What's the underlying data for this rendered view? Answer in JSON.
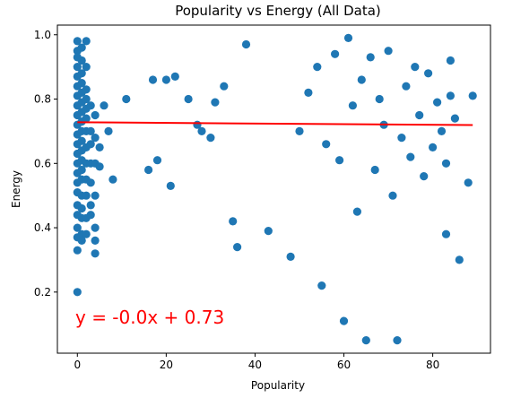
{
  "chart_data": {
    "type": "scatter",
    "title": "Popularity vs Energy (All Data)",
    "xlabel": "Popularity",
    "ylabel": "Energy",
    "xlim": [
      -4.5,
      93
    ],
    "ylim": [
      0.01,
      1.03
    ],
    "x_ticks": [
      0,
      20,
      40,
      60,
      80
    ],
    "y_ticks": [
      0.2,
      0.4,
      0.6,
      0.8,
      1.0
    ],
    "x_tick_labels": [
      "0",
      "20",
      "40",
      "60",
      "80"
    ],
    "y_tick_labels": [
      "0.2",
      "0.4",
      "0.6",
      "0.8",
      "1.0"
    ],
    "grid": false,
    "point_color": "#1f77b4",
    "regression": {
      "equation": "y = -0.0x + 0.73",
      "slope": -0.0001,
      "intercept": 0.728,
      "x_range": [
        0,
        89
      ],
      "color": "#ff0000"
    },
    "series": [
      {
        "points": [
          [
            0,
            0.98
          ],
          [
            0,
            0.95
          ],
          [
            0,
            0.93
          ],
          [
            0,
            0.9
          ],
          [
            0,
            0.87
          ],
          [
            0,
            0.84
          ],
          [
            0,
            0.81
          ],
          [
            0,
            0.78
          ],
          [
            0,
            0.75
          ],
          [
            0,
            0.72
          ],
          [
            0,
            0.69
          ],
          [
            0,
            0.66
          ],
          [
            0,
            0.63
          ],
          [
            0,
            0.6
          ],
          [
            0,
            0.57
          ],
          [
            0,
            0.54
          ],
          [
            0,
            0.51
          ],
          [
            0,
            0.47
          ],
          [
            0,
            0.44
          ],
          [
            0,
            0.4
          ],
          [
            0,
            0.37
          ],
          [
            0,
            0.33
          ],
          [
            0,
            0.2
          ],
          [
            1,
            0.96
          ],
          [
            1,
            0.92
          ],
          [
            1,
            0.88
          ],
          [
            1,
            0.85
          ],
          [
            1,
            0.82
          ],
          [
            1,
            0.79
          ],
          [
            1,
            0.76
          ],
          [
            1,
            0.73
          ],
          [
            1,
            0.7
          ],
          [
            1,
            0.67
          ],
          [
            1,
            0.64
          ],
          [
            1,
            0.61
          ],
          [
            1,
            0.58
          ],
          [
            1,
            0.55
          ],
          [
            1,
            0.5
          ],
          [
            1,
            0.46
          ],
          [
            1,
            0.43
          ],
          [
            1,
            0.38
          ],
          [
            1,
            0.36
          ],
          [
            2,
            0.98
          ],
          [
            2,
            0.9
          ],
          [
            2,
            0.83
          ],
          [
            2,
            0.8
          ],
          [
            2,
            0.77
          ],
          [
            2,
            0.74
          ],
          [
            2,
            0.7
          ],
          [
            2,
            0.65
          ],
          [
            2,
            0.6
          ],
          [
            2,
            0.55
          ],
          [
            2,
            0.5
          ],
          [
            2,
            0.43
          ],
          [
            2,
            0.38
          ],
          [
            3,
            0.78
          ],
          [
            3,
            0.7
          ],
          [
            3,
            0.66
          ],
          [
            3,
            0.6
          ],
          [
            3,
            0.54
          ],
          [
            3,
            0.47
          ],
          [
            3,
            0.44
          ],
          [
            4,
            0.75
          ],
          [
            4,
            0.68
          ],
          [
            4,
            0.6
          ],
          [
            4,
            0.5
          ],
          [
            4,
            0.4
          ],
          [
            4,
            0.36
          ],
          [
            4,
            0.32
          ],
          [
            5,
            0.65
          ],
          [
            5,
            0.59
          ],
          [
            7,
            0.7
          ],
          [
            8,
            0.55
          ],
          [
            6,
            0.78
          ],
          [
            11,
            0.8
          ],
          [
            16,
            0.58
          ],
          [
            17,
            0.86
          ],
          [
            18,
            0.61
          ],
          [
            20,
            0.86
          ],
          [
            21,
            0.53
          ],
          [
            22,
            0.87
          ],
          [
            25,
            0.8
          ],
          [
            27,
            0.72
          ],
          [
            28,
            0.7
          ],
          [
            30,
            0.68
          ],
          [
            31,
            0.79
          ],
          [
            33,
            0.84
          ],
          [
            35,
            0.42
          ],
          [
            36,
            0.34
          ],
          [
            38,
            0.97
          ],
          [
            43,
            0.39
          ],
          [
            48,
            0.31
          ],
          [
            55,
            0.22
          ],
          [
            60,
            0.11
          ],
          [
            65,
            0.05
          ],
          [
            72,
            0.05
          ],
          [
            89,
            0.81
          ],
          [
            88,
            0.54
          ],
          [
            50,
            0.7
          ],
          [
            52,
            0.82
          ],
          [
            54,
            0.9
          ],
          [
            56,
            0.66
          ],
          [
            58,
            0.94
          ],
          [
            59,
            0.61
          ],
          [
            61,
            0.99
          ],
          [
            62,
            0.78
          ],
          [
            63,
            0.45
          ],
          [
            64,
            0.86
          ],
          [
            66,
            0.93
          ],
          [
            67,
            0.58
          ],
          [
            68,
            0.8
          ],
          [
            69,
            0.72
          ],
          [
            70,
            0.95
          ],
          [
            71,
            0.5
          ],
          [
            73,
            0.68
          ],
          [
            74,
            0.84
          ],
          [
            75,
            0.62
          ],
          [
            76,
            0.9
          ],
          [
            77,
            0.75
          ],
          [
            78,
            0.56
          ],
          [
            79,
            0.88
          ],
          [
            80,
            0.65
          ],
          [
            81,
            0.79
          ],
          [
            82,
            0.7
          ],
          [
            83,
            0.6
          ],
          [
            84,
            0.81
          ],
          [
            85,
            0.74
          ],
          [
            86,
            0.3
          ],
          [
            84,
            0.92
          ],
          [
            83,
            0.38
          ]
        ]
      }
    ]
  }
}
